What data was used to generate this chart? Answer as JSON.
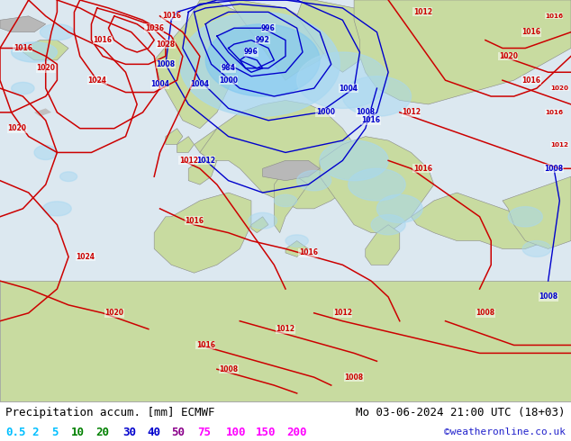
{
  "title_left": "Precipitation accum. [mm] ECMWF",
  "title_right": "Mo 03-06-2024 21:00 UTC (18+03)",
  "credit": "©weatheronline.co.uk",
  "legend_values": [
    "0.5",
    "2",
    "5",
    "10",
    "20",
    "30",
    "40",
    "50",
    "75",
    "100",
    "150",
    "200"
  ],
  "legend_colors": [
    "#00bfff",
    "#00bfff",
    "#00bfff",
    "#008000",
    "#008000",
    "#0000cd",
    "#0000cd",
    "#8b008b",
    "#ff00ff",
    "#ff00ff",
    "#ff00ff",
    "#ff00ff"
  ],
  "fig_width": 6.34,
  "fig_height": 4.9,
  "dpi": 100,
  "bottom_bar_color": "#e8e8e8",
  "ocean_color": "#dce8f0",
  "land_color": "#c8dba0",
  "northern_land_color": "#b0c890",
  "gray_land_color": "#b8b8b8",
  "red_isobar_color": "#cc0000",
  "blue_isobar_color": "#0000cc",
  "title_fontsize": 9,
  "credit_fontsize": 8,
  "legend_fontsize": 9
}
